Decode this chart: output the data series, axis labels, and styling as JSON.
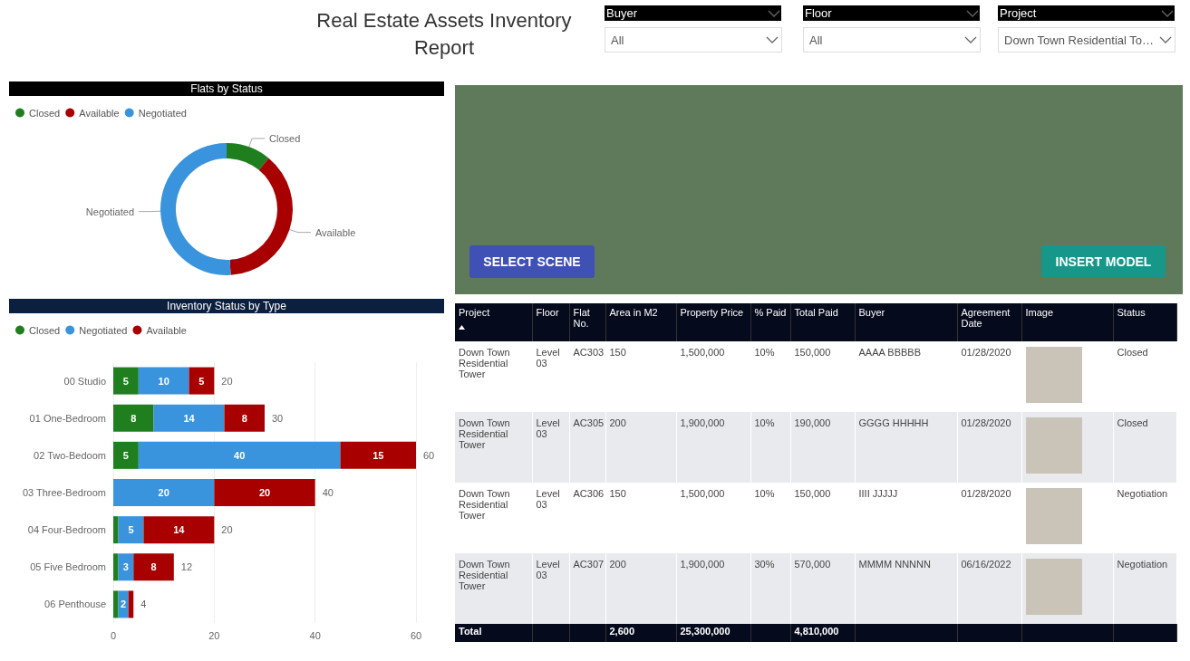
{
  "chart_data": [
    {
      "type": "other",
      "title": "Real Estate Assets Inventory Report",
      "annotations": [
        "Buyer",
        "All",
        "Floor",
        "All",
        "Project",
        "Down Town Residential To…",
        "SELECT SCENE",
        "INSERT MODEL"
      ]
    },
    {
      "type": "donut",
      "title": "Flats by Status",
      "categories": [
        "Closed",
        "Available",
        "Negotiated"
      ],
      "values": [
        11,
        38,
        51
      ],
      "colors": [
        "#1f7f1f",
        "#a80000",
        "#3a93dd"
      ],
      "legend": "top left"
    },
    {
      "type": "bar",
      "title": "Inventory Status by Type",
      "orientation": "horizontal",
      "stacked": true,
      "categories": [
        "00 Studio",
        "01 One-Bedroom",
        "02 Two-Bedoom",
        "03 Three-Bedroom",
        "04 Four-Bedroom",
        "05 Five Bedroom",
        "06 Penthouse"
      ],
      "series": [
        {
          "name": "Closed",
          "color": "#1f7f1f",
          "values": [
            5,
            8,
            5,
            0,
            1,
            1,
            1
          ],
          "value_labels": [
            "5",
            "8",
            "5",
            null,
            null,
            null,
            null
          ]
        },
        {
          "name": "Negotiated",
          "color": "#3a93dd",
          "values": [
            10,
            14,
            40,
            20,
            5,
            3,
            2
          ],
          "value_labels": [
            "10",
            "14",
            "40",
            "20",
            "5",
            "3",
            "2"
          ]
        },
        {
          "name": "Available",
          "color": "#a80000",
          "values": [
            5,
            8,
            15,
            20,
            14,
            8,
            1
          ],
          "value_labels": [
            "5",
            "8",
            "15",
            "20",
            "14",
            "8",
            null
          ]
        }
      ],
      "totals": [
        "20",
        "30",
        "60",
        "40",
        "20",
        "12",
        "4"
      ],
      "xlim": [
        0,
        60
      ],
      "xticks": [
        0,
        20,
        40,
        60
      ],
      "grid": "x",
      "legend": "top left"
    },
    {
      "type": "other",
      "categories": [
        "Project",
        "Floor",
        "Flat No.",
        "Area in M2",
        "Property Price",
        "% Paid",
        "Total Paid",
        "Buyer",
        "Agreement Date",
        "Image",
        "Status"
      ],
      "annotations": [
        "Down Town Residential Tower",
        "Level 03",
        "AC303",
        "150",
        "1,500,000",
        "10%",
        "150,000",
        "AAAA BBBBB",
        "01/28/2020",
        null,
        "Closed",
        "Down Town Residential Tower",
        "Level 03",
        "AC305",
        "200",
        "1,900,000",
        "10%",
        "190,000",
        "GGGG HHHHH",
        "01/28/2020",
        null,
        "Closed",
        "Down Town Residential Tower",
        "Level 03",
        "AC306",
        "150",
        "1,500,000",
        "10%",
        "150,000",
        "IIII JJJJJ",
        "01/28/2020",
        null,
        "Negotiation",
        "Down Town Residential Tower",
        "Level 03",
        "AC307",
        "200",
        "1,900,000",
        "30%",
        "570,000",
        "MMMM NNNNN",
        "06/16/2022",
        null,
        "Negotiation",
        "Total",
        null,
        null,
        "2,600",
        "25,300,000",
        null,
        "4,810,000",
        null,
        null,
        null,
        null
      ]
    }
  ]
}
